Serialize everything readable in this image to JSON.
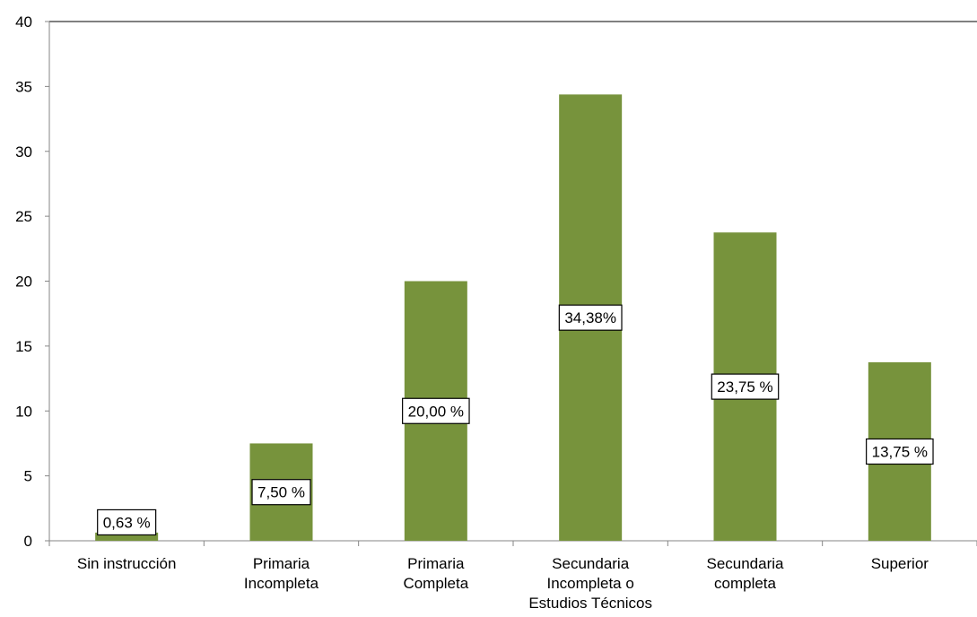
{
  "chart_data": {
    "type": "bar",
    "title": "",
    "xlabel": "",
    "ylabel": "",
    "ylim": [
      0,
      40
    ],
    "yticks": [
      "0",
      "5",
      "10",
      "15",
      "20",
      "25",
      "30",
      "35",
      "40"
    ],
    "ytick_values": [
      0,
      5,
      10,
      15,
      20,
      25,
      30,
      35,
      40
    ],
    "grid": false,
    "legend": "none",
    "bar_color": "#77933C",
    "categories": [
      [
        "Sin instrucción"
      ],
      [
        "Primaria",
        "Incompleta"
      ],
      [
        "Primaria",
        "Completa"
      ],
      [
        "Secundaria",
        "Incompleta o",
        "Estudios Técnicos"
      ],
      [
        "Secundaria",
        "completa"
      ],
      [
        "Superior"
      ]
    ],
    "values": [
      0.63,
      7.5,
      20.0,
      34.38,
      23.75,
      13.75
    ],
    "data_labels": [
      "0,63 %",
      "7,50 %",
      "20,00 %",
      "34,38%",
      "23,75 %",
      "13,75 %"
    ]
  }
}
